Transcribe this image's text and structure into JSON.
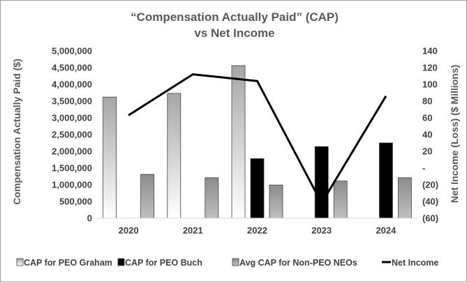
{
  "chart_data": {
    "type": "bar",
    "title_line1": "“Compensation Actually Paid” (CAP)",
    "title_line2": "vs Net Income",
    "ylabel_left": "Compensation Actually Paid ($)",
    "ylabel_right": "Net Income (Loss) ($ Millions)",
    "categories": [
      "2020",
      "2021",
      "2022",
      "2023",
      "2024"
    ],
    "ylim_left": [
      0,
      5000000
    ],
    "ylim_right": [
      -60,
      140
    ],
    "left_ticks": [
      0,
      500000,
      1000000,
      1500000,
      2000000,
      2500000,
      3000000,
      3500000,
      4000000,
      4500000,
      5000000
    ],
    "left_tick_labels": [
      "0",
      "500,000",
      "1,000,000",
      "1,500,000",
      "2,000,000",
      "2,500,000",
      "3,000,000",
      "3,500,000",
      "4,000,000",
      "4,500,000",
      "5,000,000"
    ],
    "right_ticks": [
      -60,
      -40,
      -20,
      0,
      20,
      40,
      60,
      80,
      100,
      120,
      140
    ],
    "right_tick_labels": [
      "(60)",
      "(40)",
      "(20)",
      "-",
      "20",
      "40",
      "60",
      "80",
      "100",
      "120",
      "140"
    ],
    "series": [
      {
        "name": "CAP for PEO Graham",
        "kind": "bar",
        "axis": "left",
        "fill": "gradient-light",
        "values": [
          3620000,
          3730000,
          4560000,
          null,
          null
        ]
      },
      {
        "name": "CAP for PEO Buch",
        "kind": "bar",
        "axis": "left",
        "fill": "#000000",
        "values": [
          null,
          null,
          1780000,
          2140000,
          2250000
        ]
      },
      {
        "name": "Avg CAP for Non-PEO NEOs",
        "kind": "bar",
        "axis": "left",
        "fill": "gradient-gray",
        "values": [
          1310000,
          1210000,
          990000,
          1110000,
          1210000
        ]
      },
      {
        "name": "Net Income",
        "kind": "line",
        "axis": "right",
        "color": "#000000",
        "values": [
          63,
          112,
          104,
          -42,
          86
        ]
      }
    ],
    "legend_position": "bottom",
    "grid": false
  }
}
